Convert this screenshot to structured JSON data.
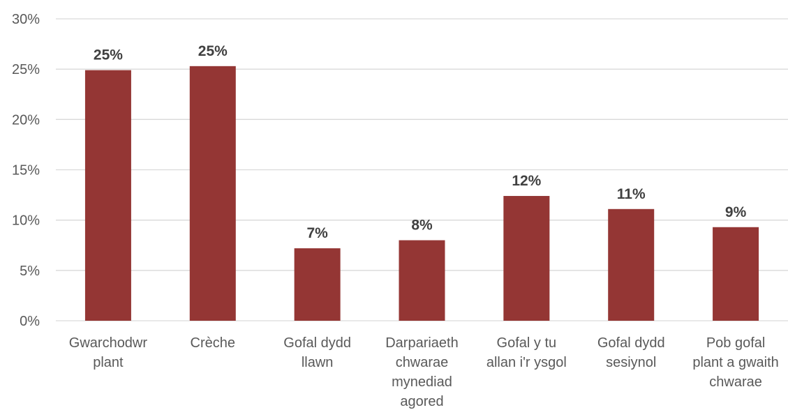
{
  "chart_data": {
    "type": "bar",
    "categories": [
      [
        "Gwarchodwr",
        "plant"
      ],
      [
        "Crèche"
      ],
      [
        "Gofal dydd",
        "llawn"
      ],
      [
        "Darpariaeth",
        "chwarae",
        "mynediad",
        "agored"
      ],
      [
        "Gofal y tu",
        "allan i'r ysgol"
      ],
      [
        "Gofal dydd",
        "sesiynol"
      ],
      [
        "Pob gofal",
        "plant a gwaith",
        "chwarae"
      ]
    ],
    "values": [
      24.9,
      25.3,
      7.2,
      8.0,
      12.4,
      11.1,
      9.3
    ],
    "data_labels": [
      "25%",
      "25%",
      "7%",
      "8%",
      "12%",
      "11%",
      "9%"
    ],
    "ylim": [
      0,
      30
    ],
    "yticks": [
      0,
      5,
      10,
      15,
      20,
      25,
      30
    ],
    "ytick_labels": [
      "0%",
      "5%",
      "10%",
      "15%",
      "20%",
      "25%",
      "30%"
    ],
    "bar_color": "#943634",
    "grid": true,
    "legend": "none",
    "title": "",
    "xlabel": "",
    "ylabel": ""
  }
}
